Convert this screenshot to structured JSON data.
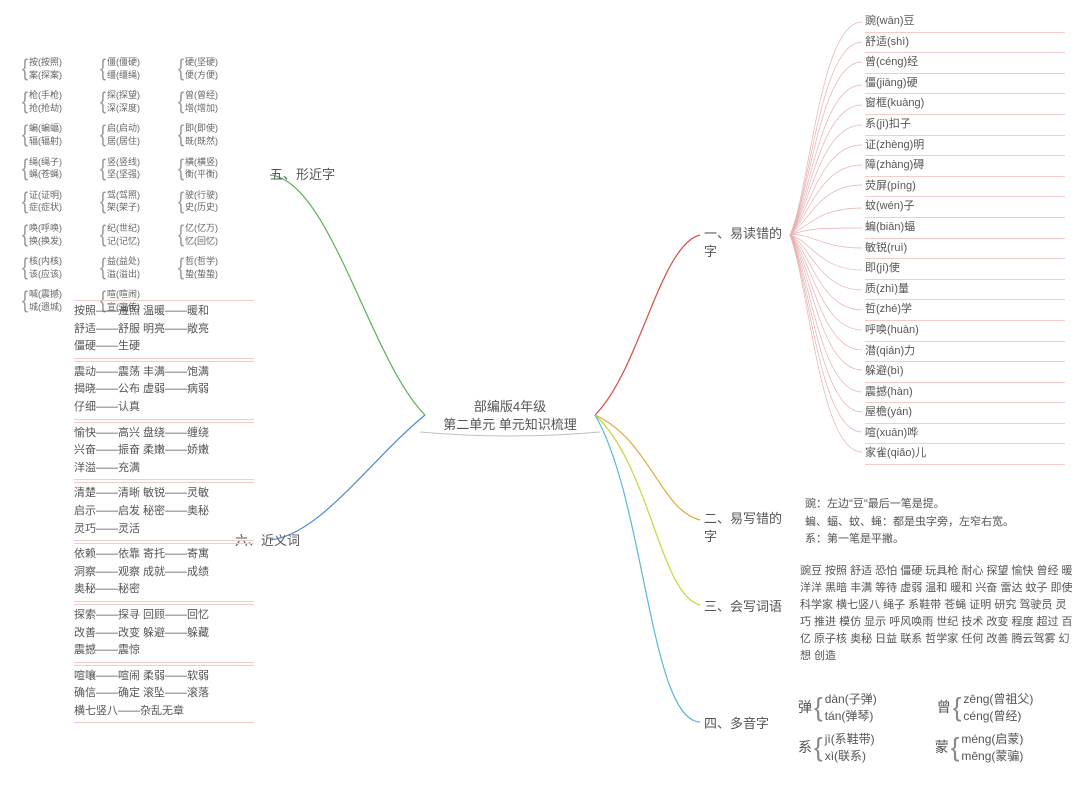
{
  "center": {
    "line1": "部编版4年级",
    "line2": "第二单元 单元知识梳理"
  },
  "branches": {
    "b1": {
      "label": "一、易读错的\n字",
      "color": "#d94a4a"
    },
    "b2": {
      "label": "二、易写错的\n字",
      "color": "#d9a93a"
    },
    "b3": {
      "label": "三、会写词语",
      "color": "#c9d53a"
    },
    "b4": {
      "label": "四、多音字",
      "color": "#5ab5d9"
    },
    "b5": {
      "label": "五、形近字",
      "color": "#5ab05a"
    },
    "b6": {
      "label": "六、近义词",
      "color": "#4a88d9"
    }
  },
  "sec1": {
    "lines": [
      "豌(wān)豆",
      "舒适(shì)",
      "曾(céng)经",
      "僵(jiāng)硬",
      "窗框(kuàng)",
      "系(jì)扣子",
      "证(zhèng)明",
      "障(zhàng)碍",
      "荧屏(píng)",
      "蚊(wén)子",
      "蝙(biān)蝠",
      "敏锐(ruì)",
      "即(jí)使",
      "质(zhì)量",
      "哲(zhé)学",
      "呼唤(huàn)",
      "潜(qián)力",
      "躲避(bì)",
      "震撼(hàn)",
      "屋檐(yán)",
      "喧(xuān)哗",
      "家雀(qiǎo)儿"
    ]
  },
  "sec2": {
    "lines": [
      "豌：左边\"豆\"最后一笔是提。",
      "蝙、蝠、蚊、蝇：都是虫字旁，左窄右宽。",
      "系：第一笔是平撇。"
    ]
  },
  "sec3": {
    "text": "豌豆 按照 舒适 恐怕 僵硬 玩具枪 耐心 探望 愉快 曾经 暖洋洋 黑暗 丰满 等待 虚弱 温和 暖和 兴奋 雷达 蚊子 即使 科学家 横七竖八 绳子 系鞋带 苍蝇 证明 研究 驾驶员 灵巧 推进 模仿 显示 呼风唤雨 世纪 技术 改变 程度 超过 百亿 原子核 奥秘 日益 联系 哲学家 任何 改善 腾云驾雾 幻想 创造"
  },
  "sec4": {
    "items": [
      {
        "char": "弹",
        "r1": "dàn(子弹)",
        "r2": "tán(弹琴)"
      },
      {
        "char": "曾",
        "r1": "zēng(曾祖父)",
        "r2": "céng(曾经)"
      },
      {
        "char": "系",
        "r1": "jì(系鞋带)",
        "r2": "xì(联系)"
      },
      {
        "char": "蒙",
        "r1": "méng(启蒙)",
        "r2": "mēng(蒙骗)"
      }
    ]
  },
  "sec5": {
    "cols": [
      [
        "按(按照)",
        "案(探案)",
        "枪(手枪)",
        "抢(抢劫)",
        "蝙(蝙蝠)",
        "辐(辐射)",
        "绳(绳子)",
        "蝇(苍蝇)",
        "证(证明)",
        "症(症状)",
        "唤(呼唤)",
        "换(换发)",
        "核(内核)",
        "该(应该)",
        "喊(震撼)",
        "城(遗城)"
      ],
      [
        "僵(僵硬)",
        "缰(缰绳)",
        "探(探望)",
        "深(深度)",
        "启(启动)",
        "居(居住)",
        "竖(竖线)",
        "坚(坚强)",
        "驾(驾照)",
        "架(架子)",
        "纪(世纪)",
        "记(记忆)",
        "益(益处)",
        "溢(溢出)",
        "喧(喧闹)",
        "宣(宣传)"
      ],
      [
        "硬(坚硬)",
        "便(方便)",
        "曾(曾经)",
        "增(增加)",
        "即(即使)",
        "既(既然)",
        "横(横竖)",
        "衡(平衡)",
        "驶(行驶)",
        "史(历史)",
        "亿(亿万)",
        "忆(回忆)",
        "哲(哲学)",
        "蛰(蛰蛰)"
      ]
    ]
  },
  "sec6": {
    "groups": [
      [
        "按照——遵照  温暖——暖和",
        "舒适——舒服  明亮——敞亮",
        "僵硬——生硬"
      ],
      [
        "震动——震荡  丰满——饱满",
        "揭晓——公布  虚弱——病弱",
        "仔细——认真"
      ],
      [
        "愉快——高兴  盘绕——缠绕",
        "兴奋——振奋  柔嫩——娇嫩",
        "洋溢——充满"
      ],
      [
        "清楚——清晰  敏锐——灵敏",
        "启示——启发  秘密——奥秘",
        "灵巧——灵活"
      ],
      [
        "依赖——依靠  寄托——寄寓",
        "洞察——观察  成就——成绩",
        "奥秘——秘密"
      ],
      [
        "探索——探寻  回顾——回忆",
        "改善——改变  躲避——躲藏",
        "震撼——震惊"
      ],
      [
        "喧嚷——喧闹  柔弱——软弱",
        "确信——确定  滚坠——滚落",
        "横七竖八——杂乱无章"
      ]
    ]
  },
  "colors": {
    "background": "#ffffff",
    "text": "#555555",
    "groupBorder": "#f5caca"
  }
}
